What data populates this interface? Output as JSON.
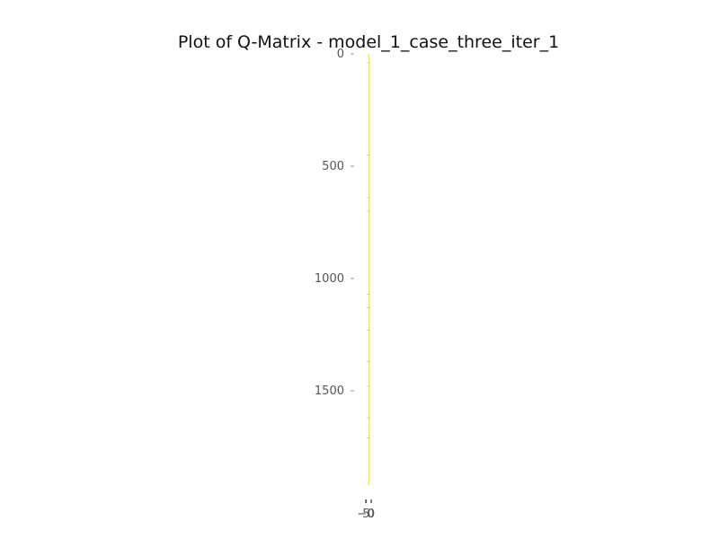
{
  "chart_data": {
    "type": "heatmap",
    "title": "Plot of Q-Matrix - model_1_case_three_iter_1",
    "xlabel": "",
    "ylabel": "",
    "rows": 1920,
    "cols": 8,
    "ylim": [
      1920,
      0
    ],
    "y_ticks": [
      0,
      500,
      1000,
      1500
    ],
    "x_ticks": [
      -0.5,
      0,
      7.5
    ],
    "x_tick_labels": [
      "−0",
      "5",
      "0"
    ],
    "cmap_low_color": "#ffffff",
    "cmap_high_color": "#fde725",
    "grid": false,
    "colored_columns": [
      4
    ],
    "faint_row_marks": [
      40,
      450,
      640,
      700,
      1070,
      1130,
      1230,
      1370,
      1480,
      1620,
      1710
    ]
  }
}
